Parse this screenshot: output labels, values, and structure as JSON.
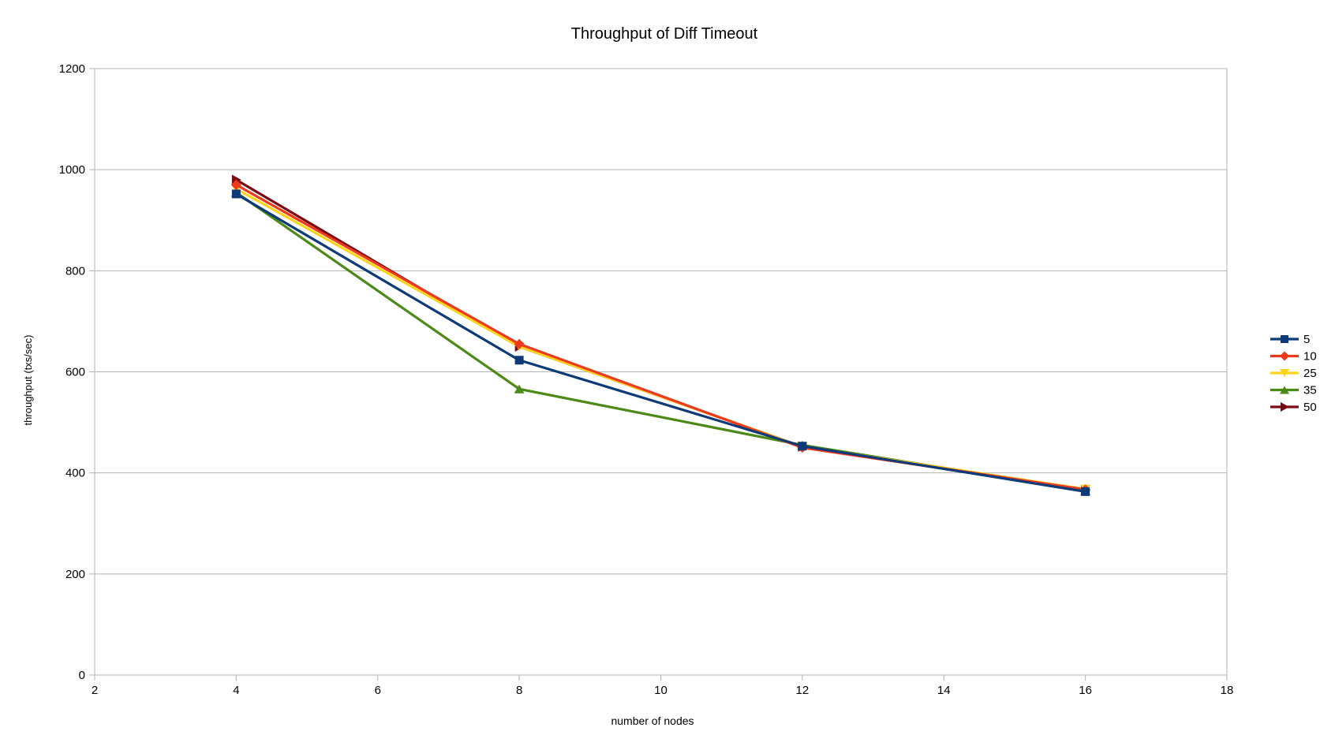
{
  "chart_data": {
    "type": "line",
    "title": "Throughput of Diff Timeout",
    "xlabel": "number of nodes",
    "ylabel": "throughput (txs/sec)",
    "xlim": [
      2,
      18
    ],
    "ylim": [
      0,
      1200
    ],
    "x_ticks": [
      2,
      4,
      6,
      8,
      10,
      12,
      14,
      16,
      18
    ],
    "y_ticks": [
      0,
      200,
      400,
      600,
      800,
      1000,
      1200
    ],
    "x": [
      4,
      8,
      12,
      16
    ],
    "grid": "horizontal",
    "legend_position": "right",
    "series": [
      {
        "name": "5",
        "values": [
          952,
          623,
          453,
          363
        ],
        "color": "#0f3a78",
        "marker": "square"
      },
      {
        "name": "10",
        "values": [
          970,
          655,
          450,
          367
        ],
        "color": "#ee3a1c",
        "marker": "diamond"
      },
      {
        "name": "25",
        "values": [
          962,
          650,
          452,
          368
        ],
        "color": "#fdd31c",
        "marker": "triangle-down"
      },
      {
        "name": "35",
        "values": [
          955,
          566,
          455,
          365
        ],
        "color": "#4c8a17",
        "marker": "triangle-up"
      },
      {
        "name": "50",
        "values": [
          980,
          650,
          452,
          365
        ],
        "color": "#7a0a14",
        "marker": "triangle-right"
      }
    ]
  }
}
